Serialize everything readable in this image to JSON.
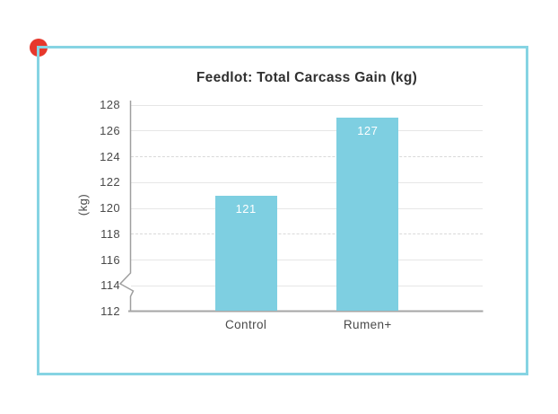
{
  "page": {
    "background_color": "#ffffff",
    "frame_color": "#86d4e3",
    "corner_dot_color": "#e6382c"
  },
  "chart_data": {
    "type": "bar",
    "title": "Feedlot: Total Carcass Gain (kg)",
    "ylabel": "(kg)",
    "xlabel": "",
    "categories": [
      "Control",
      "Rumen+"
    ],
    "values": [
      121,
      127
    ],
    "value_labels": [
      "121",
      "127"
    ],
    "bar_color": "#7ecfe1",
    "value_label_color": "#ffffff",
    "ylim": [
      112,
      128
    ],
    "yticks": [
      112,
      114,
      116,
      118,
      120,
      122,
      124,
      126,
      128
    ],
    "dashed_gridlines": [
      118,
      124
    ],
    "solid_gridlines": [
      114,
      116,
      120,
      122,
      126,
      128
    ],
    "axis_break": true,
    "grid": true,
    "legend_position": "none"
  }
}
